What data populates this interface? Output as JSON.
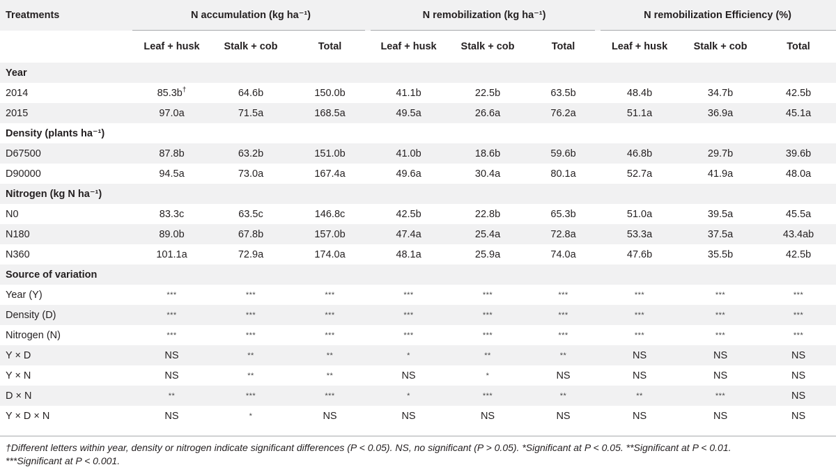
{
  "header": {
    "treatments": "Treatments",
    "groups": [
      "N accumulation (kg ha⁻¹)",
      "N remobilization (kg ha⁻¹)",
      "N remobilization Efficiency (%)"
    ],
    "subcols": [
      "Leaf + husk",
      "Stalk + cob",
      "Total",
      "Leaf + husk",
      "Stalk + cob",
      "Total",
      "Leaf + husk",
      "Stalk + cob",
      "Total"
    ]
  },
  "rows": [
    {
      "type": "section",
      "label": "Year"
    },
    {
      "type": "data",
      "label": "2014",
      "cells": [
        "85.3b†",
        "64.6b",
        "150.0b",
        "41.1b",
        "22.5b",
        "63.5b",
        "48.4b",
        "34.7b",
        "42.5b"
      ]
    },
    {
      "type": "data",
      "label": "2015",
      "cells": [
        "97.0a",
        "71.5a",
        "168.5a",
        "49.5a",
        "26.6a",
        "76.2a",
        "51.1a",
        "36.9a",
        "45.1a"
      ]
    },
    {
      "type": "section",
      "label": "Density (plants ha⁻¹)"
    },
    {
      "type": "data",
      "label": "D67500",
      "cells": [
        "87.8b",
        "63.2b",
        "151.0b",
        "41.0b",
        "18.6b",
        "59.6b",
        "46.8b",
        "29.7b",
        "39.6b"
      ]
    },
    {
      "type": "data",
      "label": "D90000",
      "cells": [
        "94.5a",
        "73.0a",
        "167.4a",
        "49.6a",
        "30.4a",
        "80.1a",
        "52.7a",
        "41.9a",
        "48.0a"
      ]
    },
    {
      "type": "section",
      "label": "Nitrogen (kg N ha⁻¹)"
    },
    {
      "type": "data",
      "label": "N0",
      "cells": [
        "83.3c",
        "63.5c",
        "146.8c",
        "42.5b",
        "22.8b",
        "65.3b",
        "51.0a",
        "39.5a",
        "45.5a"
      ]
    },
    {
      "type": "data",
      "label": "N180",
      "cells": [
        "89.0b",
        "67.8b",
        "157.0b",
        "47.4a",
        "25.4a",
        "72.8a",
        "53.3a",
        "37.5a",
        "43.4ab"
      ]
    },
    {
      "type": "data",
      "label": "N360",
      "cells": [
        "101.1a",
        "72.9a",
        "174.0a",
        "48.1a",
        "25.9a",
        "74.0a",
        "47.6b",
        "35.5b",
        "42.5b"
      ]
    },
    {
      "type": "section",
      "label": "Source of variation"
    },
    {
      "type": "data",
      "label": "Year (Y)",
      "cells": [
        "***",
        "***",
        "***",
        "***",
        "***",
        "***",
        "***",
        "***",
        "***"
      ]
    },
    {
      "type": "data",
      "label": "Density (D)",
      "cells": [
        "***",
        "***",
        "***",
        "***",
        "***",
        "***",
        "***",
        "***",
        "***"
      ]
    },
    {
      "type": "data",
      "label": "Nitrogen (N)",
      "cells": [
        "***",
        "***",
        "***",
        "***",
        "***",
        "***",
        "***",
        "***",
        "***"
      ]
    },
    {
      "type": "data",
      "label": "Y × D",
      "cells": [
        "NS",
        "**",
        "**",
        "*",
        "**",
        "**",
        "NS",
        "NS",
        "NS"
      ]
    },
    {
      "type": "data",
      "label": "Y × N",
      "cells": [
        "NS",
        "**",
        "**",
        "NS",
        "*",
        "NS",
        "NS",
        "NS",
        "NS"
      ]
    },
    {
      "type": "data",
      "label": "D × N",
      "cells": [
        "**",
        "***",
        "***",
        "*",
        "***",
        "**",
        "**",
        "***",
        "NS"
      ]
    },
    {
      "type": "data",
      "label": "Y × D × N",
      "cells": [
        "NS",
        "*",
        "NS",
        "NS",
        "NS",
        "NS",
        "NS",
        "NS",
        "NS"
      ]
    }
  ],
  "footnote": {
    "line1": "†Different letters within year, density or nitrogen indicate significant differences (P < 0.05). NS, no significant (P > 0.05). *Significant at P < 0.05. **Significant at P < 0.01.",
    "line2": "***Significant at P < 0.001."
  }
}
